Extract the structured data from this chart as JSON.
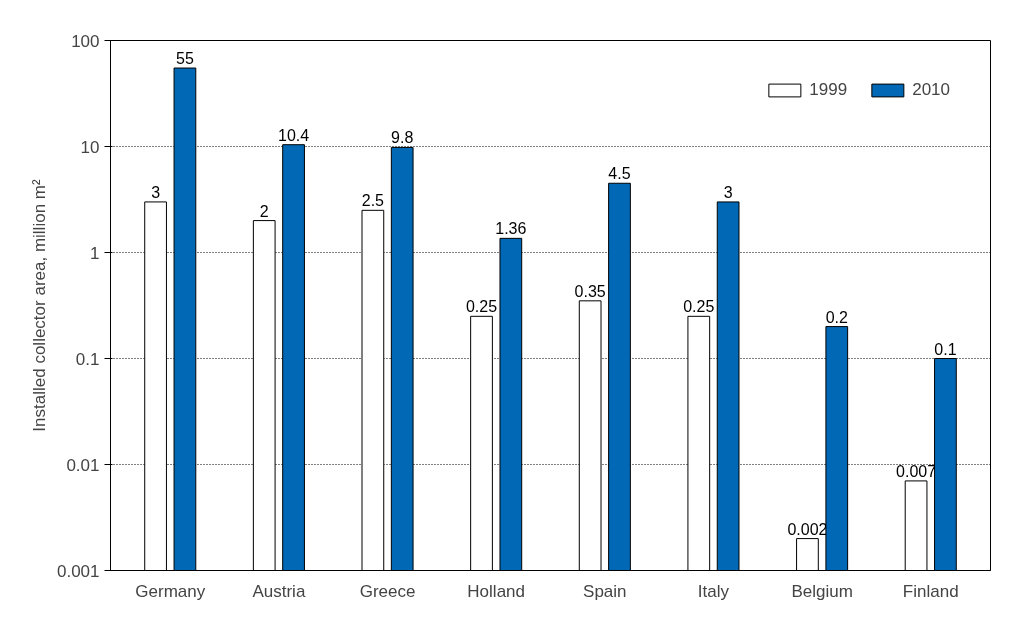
{
  "chart_data": {
    "type": "bar",
    "ylabel": "Installed collector area, million m²",
    "categories": [
      "Germany",
      "Austria",
      "Greece",
      "Holland",
      "Spain",
      "Italy",
      "Belgium",
      "Finland"
    ],
    "series": [
      {
        "name": "1999",
        "color": "#ffffff",
        "values": [
          3,
          2,
          2.5,
          0.25,
          0.35,
          0.25,
          0.002,
          0.007
        ]
      },
      {
        "name": "2010",
        "color": "#0068b4",
        "values": [
          55,
          10.4,
          9.8,
          1.36,
          4.5,
          3,
          0.2,
          0.1
        ]
      }
    ],
    "log": true,
    "ylim": [
      0.001,
      100
    ],
    "yticks": [
      0.001,
      0.01,
      0.1,
      1,
      10,
      100
    ],
    "grid": "y",
    "legend": "top right",
    "data_labels": true
  }
}
